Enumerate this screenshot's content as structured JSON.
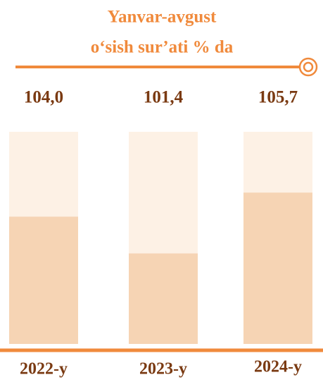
{
  "chart_data": {
    "type": "bar",
    "title": "Yanvar-avgust",
    "subtitle": "o‘sish sur’ati % da",
    "categories": [
      "2022-y",
      "2023-y",
      "2024-y"
    ],
    "values": [
      104.0,
      101.4,
      105.7
    ],
    "value_labels": [
      "104,0",
      "101,4",
      "105,7"
    ],
    "color": "#f6d4b4",
    "background_color": "#fdf1e5",
    "ylim": [
      95,
      110
    ]
  }
}
